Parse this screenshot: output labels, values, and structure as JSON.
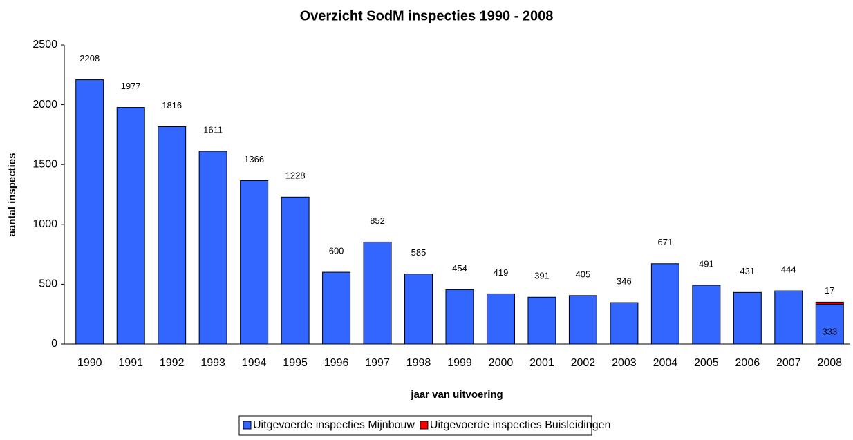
{
  "chart_data": {
    "type": "bar",
    "stacked": true,
    "title": "Overzicht SodM inspecties 1990 - 2008",
    "xlabel": "jaar van uitvoering",
    "ylabel": "aantal inspecties",
    "categories": [
      "1990",
      "1991",
      "1992",
      "1993",
      "1994",
      "1995",
      "1996",
      "1997",
      "1998",
      "1999",
      "2000",
      "2001",
      "2002",
      "2003",
      "2004",
      "2005",
      "2006",
      "2007",
      "2008"
    ],
    "series": [
      {
        "name": "Uitgevoerde inspecties Mijnbouw",
        "color": "#3366ff",
        "values": [
          2208,
          1977,
          1816,
          1611,
          1366,
          1228,
          600,
          852,
          585,
          454,
          419,
          391,
          405,
          346,
          671,
          491,
          431,
          444,
          333
        ]
      },
      {
        "name": "Uitgevoerde inspecties Buisleidingen",
        "color": "#ff0000",
        "values": [
          null,
          null,
          null,
          null,
          null,
          null,
          null,
          null,
          null,
          null,
          null,
          null,
          null,
          null,
          null,
          null,
          null,
          null,
          17
        ]
      }
    ],
    "ylim": [
      0,
      2500
    ],
    "yticks": [
      0,
      500,
      1000,
      1500,
      2000,
      2500
    ],
    "grid": false,
    "legend": "bottom"
  }
}
